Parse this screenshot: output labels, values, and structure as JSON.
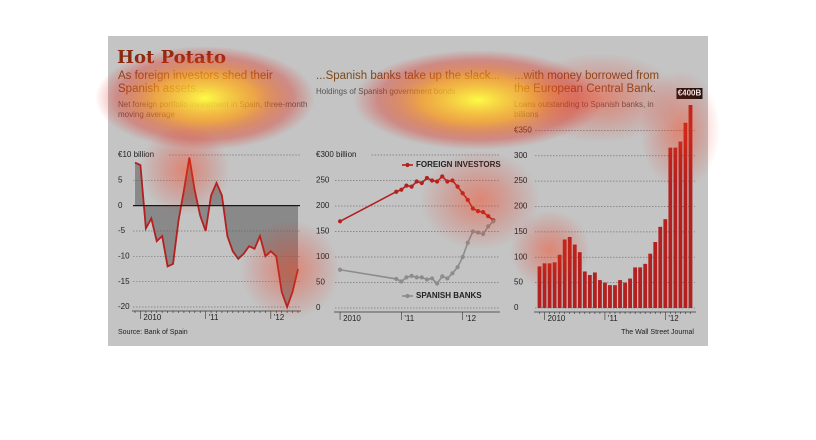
{
  "header": {
    "title": "Hot Potato"
  },
  "footer": {
    "source": "Source: Bank of Spain",
    "credit": "The Wall Street Journal"
  },
  "chart_data": [
    {
      "type": "area-line",
      "title": "As foreign investors shed their Spanish assets...",
      "subtitle": "Net foreign portfolio investment in Spain, three-month moving average",
      "categories": [
        null,
        "2010",
        null,
        null,
        null,
        null,
        null,
        null,
        null,
        null,
        null,
        null,
        null,
        "'11",
        null,
        null,
        null,
        null,
        null,
        null,
        null,
        null,
        null,
        null,
        null,
        "'12",
        null,
        null,
        null,
        null,
        null
      ],
      "values": [
        8.5,
        8,
        -4.5,
        -2.5,
        -7,
        -6,
        -12,
        -11.5,
        -3,
        3,
        9.5,
        3,
        -2,
        -5,
        2,
        4.5,
        2,
        -6,
        -9,
        -10.5,
        -9.5,
        -8,
        -8.5,
        -6,
        -10,
        -9,
        -10,
        -17,
        -20,
        -17,
        -12.5
      ],
      "color": "#b3201f",
      "fill_color": "#5a5a5a",
      "ylim": [
        -20,
        10
      ],
      "yticks": [
        -20,
        -15,
        -10,
        -5,
        0,
        5,
        {
          "value": 10,
          "label": "€10 billion"
        }
      ],
      "grid": true
    },
    {
      "type": "line",
      "title": "...Spanish banks take up the slack...",
      "subtitle": "Holdings of Spanish government bonds",
      "x": [
        2010.0,
        2010.917,
        2011.0,
        2011.083,
        2011.167,
        2011.25,
        2011.333,
        2011.417,
        2011.5,
        2011.583,
        2011.667,
        2011.75,
        2011.833,
        2011.917,
        2012.0,
        2012.083,
        2012.167,
        2012.25,
        2012.333,
        2012.417,
        2012.5
      ],
      "series": [
        {
          "name": "FOREIGN INVESTORS",
          "color": "#b3201f",
          "values": [
            170,
            228,
            232,
            240,
            238,
            248,
            245,
            255,
            250,
            248,
            258,
            248,
            250,
            238,
            225,
            212,
            195,
            190,
            188,
            180,
            172
          ]
        },
        {
          "name": "SPANISH BANKS",
          "color": "#8c8c8c",
          "values": [
            75,
            57,
            52,
            60,
            63,
            60,
            60,
            56,
            58,
            48,
            62,
            58,
            68,
            80,
            100,
            128,
            150,
            148,
            145,
            160,
            170
          ]
        }
      ],
      "xlim": [
        2009.95,
        2012.56
      ],
      "xticks": [
        {
          "value": 2010,
          "label": "2010"
        },
        {
          "value": 2011,
          "label": "'11"
        },
        {
          "value": 2012,
          "label": "'12"
        }
      ],
      "ylim": [
        0,
        300
      ],
      "yticks": [
        0,
        50,
        100,
        150,
        200,
        250,
        {
          "value": 300,
          "label": "€300 billion"
        }
      ],
      "grid": true
    },
    {
      "type": "bar",
      "title": "...with money borrowed from the European Central Bank.",
      "subtitle": "Loans outstanding to Spanish banks, in billions",
      "categories": [
        null,
        "2010",
        null,
        null,
        null,
        null,
        null,
        null,
        null,
        null,
        null,
        null,
        null,
        "'11",
        null,
        null,
        null,
        null,
        null,
        null,
        null,
        null,
        null,
        null,
        null,
        "'12",
        null,
        null,
        null,
        null,
        null
      ],
      "values": [
        82,
        88,
        88,
        90,
        105,
        135,
        140,
        125,
        110,
        72,
        65,
        70,
        55,
        50,
        45,
        45,
        55,
        50,
        58,
        80,
        80,
        87,
        107,
        130,
        160,
        175,
        316,
        316,
        328,
        365,
        400
      ],
      "annotation": "€400B",
      "color": "#b3201f",
      "ylim": [
        0,
        400
      ],
      "yticks": [
        0,
        50,
        100,
        150,
        200,
        250,
        300,
        {
          "value": 350,
          "label": "€350"
        }
      ],
      "grid": true
    }
  ]
}
